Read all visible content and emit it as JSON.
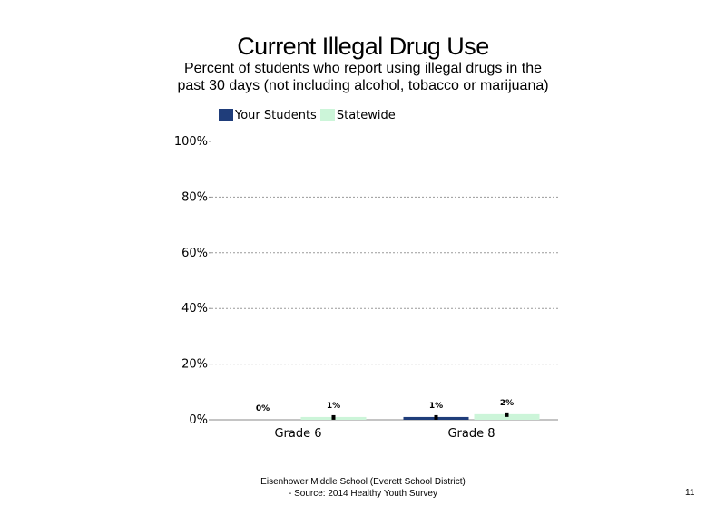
{
  "chart_data": {
    "type": "bar",
    "title": "Current Illegal Drug Use",
    "subtitle": "Percent of students who report using illegal drugs in the past 30 days (not including alcohol, tobacco or marijuana)",
    "categories": [
      "Grade 6",
      "Grade 8"
    ],
    "series": [
      {
        "name": "Your Students",
        "color": "#1f3d7a",
        "values": [
          0,
          1
        ],
        "labels": [
          "0%",
          "1%"
        ]
      },
      {
        "name": "Statewide",
        "color": "#ccf5d9",
        "values": [
          1,
          2
        ],
        "labels": [
          "1%",
          "2%"
        ]
      }
    ],
    "ylim": [
      0,
      100
    ],
    "yticks": [
      0,
      20,
      40,
      60,
      80,
      100
    ],
    "ytick_labels": [
      "0%",
      "20%",
      "40%",
      "60%",
      "80%",
      "100%"
    ],
    "grid": true,
    "legend_position": "top",
    "error_bars": true
  },
  "footer": {
    "line1": "Eisenhower Middle School (Everett School District)",
    "line2": "- Source: 2014 Healthy  Youth Survey"
  },
  "page_number": "11"
}
